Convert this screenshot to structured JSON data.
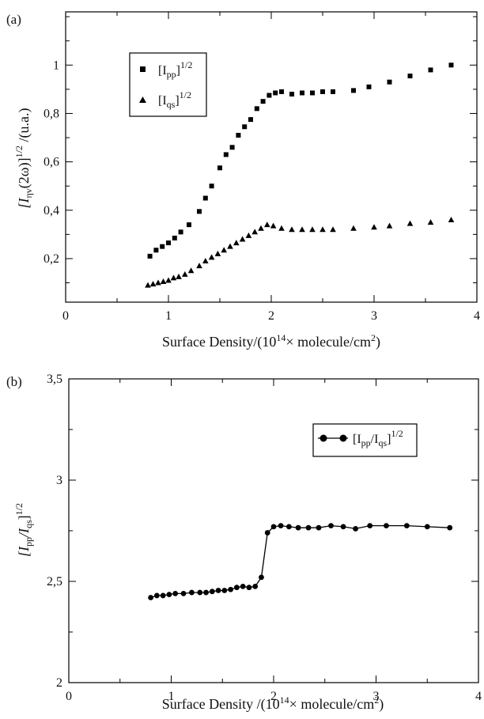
{
  "chart_data": [
    {
      "panel": "(a)",
      "type": "scatter",
      "xlabel": "Surface Density/(10¹⁴× molecule/cm²)",
      "ylabel": "[Iηv(2ω)]^1/2 /(u.a.)",
      "xlim": [
        0,
        4
      ],
      "ylim": [
        0.02,
        1.22
      ],
      "xticks": [
        "0",
        "1",
        "2",
        "3",
        "4"
      ],
      "yticks": [
        "0,2",
        "0,4",
        "0,6",
        "0,8",
        "1"
      ],
      "ytick_values": [
        0.2,
        0.4,
        0.6,
        0.8,
        1.0
      ],
      "legend_position": "top-left",
      "series": [
        {
          "name": "[Ipp]^1/2",
          "marker": "square",
          "x": [
            0.82,
            0.88,
            0.94,
            1.0,
            1.06,
            1.12,
            1.2,
            1.3,
            1.36,
            1.42,
            1.5,
            1.56,
            1.62,
            1.68,
            1.74,
            1.8,
            1.86,
            1.92,
            1.98,
            2.04,
            2.1,
            2.2,
            2.3,
            2.4,
            2.5,
            2.6,
            2.8,
            2.95,
            3.15,
            3.35,
            3.55,
            3.75
          ],
          "y": [
            0.21,
            0.235,
            0.25,
            0.265,
            0.285,
            0.31,
            0.34,
            0.395,
            0.45,
            0.5,
            0.575,
            0.63,
            0.66,
            0.71,
            0.745,
            0.775,
            0.82,
            0.85,
            0.875,
            0.885,
            0.89,
            0.88,
            0.885,
            0.885,
            0.89,
            0.89,
            0.895,
            0.91,
            0.93,
            0.955,
            0.98,
            1.0
          ]
        },
        {
          "name": "[Iqs]^1/2",
          "marker": "triangle",
          "x": [
            0.8,
            0.85,
            0.9,
            0.95,
            1.0,
            1.05,
            1.1,
            1.16,
            1.22,
            1.3,
            1.36,
            1.42,
            1.48,
            1.54,
            1.6,
            1.66,
            1.72,
            1.78,
            1.84,
            1.9,
            1.96,
            2.02,
            2.1,
            2.2,
            2.3,
            2.4,
            2.5,
            2.6,
            2.8,
            3.0,
            3.15,
            3.35,
            3.55,
            3.75
          ],
          "y": [
            0.09,
            0.095,
            0.1,
            0.105,
            0.11,
            0.12,
            0.125,
            0.135,
            0.15,
            0.17,
            0.19,
            0.205,
            0.22,
            0.235,
            0.25,
            0.265,
            0.28,
            0.295,
            0.31,
            0.325,
            0.34,
            0.335,
            0.325,
            0.32,
            0.32,
            0.32,
            0.32,
            0.32,
            0.325,
            0.33,
            0.335,
            0.345,
            0.35,
            0.36
          ]
        }
      ]
    },
    {
      "panel": "(b)",
      "type": "line",
      "xlabel": "Surface Density /(10¹⁴× molecule/cm²)",
      "ylabel": "[Ipp/Iqs]^1/2",
      "xlim": [
        0,
        4
      ],
      "ylim": [
        2,
        3.5
      ],
      "xticks": [
        "0",
        "1",
        "2",
        "3",
        "4"
      ],
      "yticks": [
        "2",
        "2,5",
        "3",
        "3,5"
      ],
      "ytick_values": [
        2,
        2.5,
        3,
        3.5
      ],
      "legend_position": "top-right",
      "series": [
        {
          "name": "[Ipp/Iqs]^1/2",
          "marker": "circle",
          "x": [
            0.8,
            0.86,
            0.92,
            0.98,
            1.04,
            1.12,
            1.2,
            1.28,
            1.34,
            1.4,
            1.46,
            1.52,
            1.58,
            1.64,
            1.7,
            1.76,
            1.82,
            1.88,
            1.94,
            2.0,
            2.07,
            2.15,
            2.24,
            2.34,
            2.44,
            2.56,
            2.68,
            2.8,
            2.94,
            3.1,
            3.3,
            3.5,
            3.72
          ],
          "y": [
            2.42,
            2.43,
            2.43,
            2.435,
            2.44,
            2.44,
            2.445,
            2.445,
            2.445,
            2.45,
            2.455,
            2.455,
            2.46,
            2.47,
            2.475,
            2.47,
            2.475,
            2.52,
            2.74,
            2.77,
            2.775,
            2.77,
            2.765,
            2.765,
            2.765,
            2.775,
            2.77,
            2.76,
            2.775,
            2.775,
            2.775,
            2.77,
            2.765
          ]
        }
      ]
    }
  ],
  "legend": {
    "a_ipp": "[I",
    "a_ipp_sub": "pp",
    "a_ipp_tail": "]",
    "a_ipp_sup": "1/2",
    "a_iqs": "[I",
    "a_iqs_sub": "qs",
    "a_iqs_tail": "]",
    "a_iqs_sup": "1/2",
    "b_ratio": "[I",
    "b_ratio_sub1": "pp",
    "b_ratio_mid": "/I",
    "b_ratio_sub2": "qs",
    "b_ratio_tail": "]",
    "b_ratio_sup": "1/2"
  },
  "axis_text": {
    "a_ylabel_open": "[I",
    "a_ylabel_sub": "ηv",
    "a_ylabel_mid": "(2ω)]",
    "a_ylabel_sup": "1/2",
    "a_ylabel_tail": " /(u.a.)",
    "b_ylabel_open": "[I",
    "b_ylabel_sub1": "pp",
    "b_ylabel_mid": "/I",
    "b_ylabel_sub2": "qs",
    "b_ylabel_tail": "]",
    "b_ylabel_sup": "1/2",
    "a_xlabel_pre": "Surface Density/(10",
    "a_xlabel_sup1": "14",
    "a_xlabel_mid": "× molecule/cm",
    "a_xlabel_sup2": "2",
    "a_xlabel_post": ")",
    "b_xlabel_pre": "Surface Density /(10",
    "b_xlabel_sup1": "14",
    "b_xlabel_mid": "× molecule/cm",
    "b_xlabel_sup2": "2",
    "b_xlabel_post": ")"
  }
}
